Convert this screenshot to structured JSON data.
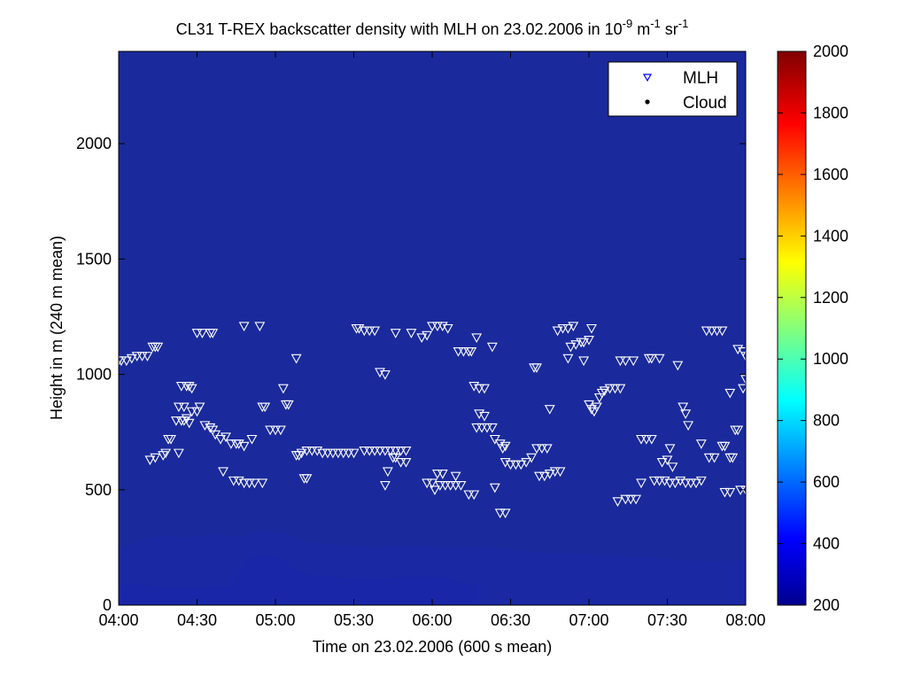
{
  "chart_data": {
    "type": "scatter",
    "title": "CL31 T-REX backscatter density with MLH on 23.02.2006 in 10",
    "title_units": {
      "exp1": "-9",
      "unit1": " m",
      "exp2": "-1",
      "unit2": " sr",
      "exp3": "-1"
    },
    "xlabel": "Time on 23.02.2006 (600 s mean)",
    "ylabel": "Height in m (240 m mean)",
    "xlim": [
      "04:00",
      "08:00"
    ],
    "ylim": [
      0,
      2400
    ],
    "x_ticks": [
      "04:00",
      "04:30",
      "05:00",
      "05:30",
      "06:00",
      "06:30",
      "07:00",
      "07:30",
      "08:00"
    ],
    "y_ticks": [
      "0",
      "500",
      "1000",
      "1500",
      "2000"
    ],
    "grid": false,
    "legend_position": "top-right",
    "colors": {
      "background": "#1a2a9c",
      "ground_layer": "#1826a0",
      "marker": "#ffffff",
      "legend_mlh": "#0000ff"
    },
    "colorbar": {
      "min": 200,
      "max": 2000,
      "ticks": [
        "200",
        "400",
        "600",
        "800",
        "1000",
        "1200",
        "1400",
        "1600",
        "1800",
        "2000"
      ],
      "colormap": "jet"
    },
    "series": [
      {
        "name": "MLH",
        "marker": "triangle-down",
        "points": [
          [
            "04:00",
            1060
          ],
          [
            "04:01",
            1060
          ],
          [
            "04:03",
            1060
          ],
          [
            "04:05",
            1070
          ],
          [
            "04:07",
            1080
          ],
          [
            "04:09",
            1080
          ],
          [
            "04:11",
            1080
          ],
          [
            "04:13",
            1120
          ],
          [
            "04:14",
            1120
          ],
          [
            "04:15",
            1120
          ],
          [
            "04:12",
            630
          ],
          [
            "04:14",
            640
          ],
          [
            "04:17",
            650
          ],
          [
            "04:18",
            660
          ],
          [
            "04:19",
            720
          ],
          [
            "04:20",
            720
          ],
          [
            "04:22",
            800
          ],
          [
            "04:24",
            800
          ],
          [
            "04:25",
            800
          ],
          [
            "04:26",
            810
          ],
          [
            "04:27",
            790
          ],
          [
            "04:23",
            860
          ],
          [
            "04:25",
            860
          ],
          [
            "04:24",
            950
          ],
          [
            "04:26",
            950
          ],
          [
            "04:27",
            950
          ],
          [
            "04:28",
            940
          ],
          [
            "04:23",
            660
          ],
          [
            "04:28",
            840
          ],
          [
            "04:30",
            840
          ],
          [
            "04:31",
            860
          ],
          [
            "04:33",
            780
          ],
          [
            "04:35",
            770
          ],
          [
            "04:36",
            760
          ],
          [
            "04:37",
            740
          ],
          [
            "04:39",
            720
          ],
          [
            "04:41",
            730
          ],
          [
            "04:43",
            700
          ],
          [
            "04:45",
            700
          ],
          [
            "04:46",
            700
          ],
          [
            "04:48",
            690
          ],
          [
            "04:51",
            720
          ],
          [
            "04:30",
            1180
          ],
          [
            "04:32",
            1180
          ],
          [
            "04:35",
            1180
          ],
          [
            "04:36",
            1180
          ],
          [
            "04:40",
            580
          ],
          [
            "04:44",
            540
          ],
          [
            "04:46",
            540
          ],
          [
            "04:48",
            530
          ],
          [
            "04:50",
            530
          ],
          [
            "04:52",
            530
          ],
          [
            "04:48",
            1210
          ],
          [
            "04:54",
            1210
          ],
          [
            "04:55",
            860
          ],
          [
            "04:56",
            860
          ],
          [
            "04:58",
            760
          ],
          [
            "05:00",
            760
          ],
          [
            "05:02",
            760
          ],
          [
            "05:03",
            940
          ],
          [
            "05:04",
            870
          ],
          [
            "05:05",
            870
          ],
          [
            "04:55",
            530
          ],
          [
            "05:08",
            1070
          ],
          [
            "05:08",
            650
          ],
          [
            "05:09",
            650
          ],
          [
            "05:10",
            660
          ],
          [
            "05:12",
            670
          ],
          [
            "05:14",
            670
          ],
          [
            "05:16",
            670
          ],
          [
            "05:18",
            660
          ],
          [
            "05:20",
            660
          ],
          [
            "05:22",
            660
          ],
          [
            "05:24",
            660
          ],
          [
            "05:26",
            660
          ],
          [
            "05:28",
            660
          ],
          [
            "05:30",
            660
          ],
          [
            "05:11",
            550
          ],
          [
            "05:12",
            550
          ],
          [
            "05:31",
            1200
          ],
          [
            "05:32",
            1200
          ],
          [
            "05:34",
            1190
          ],
          [
            "05:36",
            1190
          ],
          [
            "05:38",
            1190
          ],
          [
            "05:34",
            670
          ],
          [
            "05:36",
            670
          ],
          [
            "05:38",
            670
          ],
          [
            "05:40",
            670
          ],
          [
            "05:42",
            670
          ],
          [
            "05:44",
            670
          ],
          [
            "05:46",
            670
          ],
          [
            "05:48",
            670
          ],
          [
            "05:50",
            670
          ],
          [
            "05:40",
            1010
          ],
          [
            "05:42",
            1000
          ],
          [
            "05:42",
            520
          ],
          [
            "05:43",
            580
          ],
          [
            "05:45",
            640
          ],
          [
            "05:46",
            640
          ],
          [
            "05:48",
            620
          ],
          [
            "05:50",
            620
          ],
          [
            "05:46",
            1180
          ],
          [
            "05:52",
            1180
          ],
          [
            "05:56",
            1160
          ],
          [
            "05:58",
            1170
          ],
          [
            "05:58",
            530
          ],
          [
            "06:00",
            530
          ],
          [
            "06:01",
            500
          ],
          [
            "06:03",
            520
          ],
          [
            "06:05",
            520
          ],
          [
            "06:07",
            520
          ],
          [
            "06:09",
            520
          ],
          [
            "06:11",
            520
          ],
          [
            "06:00",
            1210
          ],
          [
            "06:02",
            1210
          ],
          [
            "06:04",
            1210
          ],
          [
            "06:06",
            1200
          ],
          [
            "06:02",
            570
          ],
          [
            "06:04",
            570
          ],
          [
            "06:09",
            560
          ],
          [
            "06:10",
            1100
          ],
          [
            "06:12",
            1100
          ],
          [
            "06:14",
            1100
          ],
          [
            "06:15",
            1100
          ],
          [
            "06:17",
            1160
          ],
          [
            "06:14",
            480
          ],
          [
            "06:16",
            480
          ],
          [
            "06:16",
            950
          ],
          [
            "06:18",
            940
          ],
          [
            "06:20",
            940
          ],
          [
            "06:18",
            830
          ],
          [
            "06:20",
            820
          ],
          [
            "06:17",
            770
          ],
          [
            "06:19",
            770
          ],
          [
            "06:21",
            770
          ],
          [
            "06:23",
            770
          ],
          [
            "06:23",
            1120
          ],
          [
            "06:24",
            510
          ],
          [
            "06:24",
            720
          ],
          [
            "06:26",
            700
          ],
          [
            "06:27",
            680
          ],
          [
            "06:28",
            690
          ],
          [
            "06:26",
            400
          ],
          [
            "06:28",
            400
          ],
          [
            "06:28",
            620
          ],
          [
            "06:30",
            610
          ],
          [
            "06:32",
            610
          ],
          [
            "06:34",
            610
          ],
          [
            "06:36",
            620
          ],
          [
            "06:38",
            640
          ],
          [
            "06:39",
            1030
          ],
          [
            "06:40",
            1030
          ],
          [
            "06:40",
            680
          ],
          [
            "06:42",
            680
          ],
          [
            "06:44",
            680
          ],
          [
            "06:41",
            560
          ],
          [
            "06:43",
            560
          ],
          [
            "06:45",
            570
          ],
          [
            "06:47",
            580
          ],
          [
            "06:49",
            580
          ],
          [
            "06:45",
            850
          ],
          [
            "06:48",
            1190
          ],
          [
            "06:50",
            1200
          ],
          [
            "06:52",
            1200
          ],
          [
            "06:54",
            1210
          ],
          [
            "06:52",
            1070
          ],
          [
            "06:53",
            1120
          ],
          [
            "06:55",
            1130
          ],
          [
            "06:57",
            1140
          ],
          [
            "06:58",
            1140
          ],
          [
            "07:00",
            1150
          ],
          [
            "06:58",
            1060
          ],
          [
            "07:01",
            1200
          ],
          [
            "07:00",
            870
          ],
          [
            "07:01",
            850
          ],
          [
            "07:02",
            840
          ],
          [
            "07:03",
            860
          ],
          [
            "07:04",
            900
          ],
          [
            "07:05",
            920
          ],
          [
            "07:06",
            930
          ],
          [
            "07:08",
            940
          ],
          [
            "07:10",
            940
          ],
          [
            "07:12",
            940
          ],
          [
            "07:12",
            1060
          ],
          [
            "07:14",
            1060
          ],
          [
            "07:17",
            1060
          ],
          [
            "07:11",
            450
          ],
          [
            "07:14",
            460
          ],
          [
            "07:16",
            460
          ],
          [
            "07:18",
            460
          ],
          [
            "07:20",
            720
          ],
          [
            "07:22",
            720
          ],
          [
            "07:24",
            720
          ],
          [
            "07:20",
            530
          ],
          [
            "07:23",
            1070
          ],
          [
            "07:24",
            1070
          ],
          [
            "07:27",
            1070
          ],
          [
            "07:25",
            540
          ],
          [
            "07:27",
            540
          ],
          [
            "07:29",
            540
          ],
          [
            "07:31",
            530
          ],
          [
            "07:33",
            530
          ],
          [
            "07:35",
            540
          ],
          [
            "07:37",
            530
          ],
          [
            "07:39",
            530
          ],
          [
            "07:41",
            530
          ],
          [
            "07:43",
            540
          ],
          [
            "07:28",
            620
          ],
          [
            "07:30",
            630
          ],
          [
            "07:32",
            600
          ],
          [
            "07:31",
            680
          ],
          [
            "07:34",
            1040
          ],
          [
            "07:36",
            860
          ],
          [
            "07:37",
            830
          ],
          [
            "07:38",
            780
          ],
          [
            "07:43",
            700
          ],
          [
            "07:45",
            1190
          ],
          [
            "07:47",
            1190
          ],
          [
            "07:49",
            1190
          ],
          [
            "07:51",
            1190
          ],
          [
            "07:46",
            640
          ],
          [
            "07:48",
            640
          ],
          [
            "07:51",
            690
          ],
          [
            "07:52",
            690
          ],
          [
            "07:54",
            640
          ],
          [
            "07:55",
            640
          ],
          [
            "07:52",
            490
          ],
          [
            "07:54",
            490
          ],
          [
            "07:54",
            920
          ],
          [
            "07:56",
            760
          ],
          [
            "07:57",
            760
          ],
          [
            "07:57",
            1110
          ],
          [
            "07:59",
            1100
          ],
          [
            "07:58",
            500
          ],
          [
            "08:00",
            500
          ],
          [
            "07:59",
            940
          ],
          [
            "08:00",
            1080
          ],
          [
            "08:00",
            980
          ]
        ]
      },
      {
        "name": "Cloud",
        "marker": "dot",
        "points": []
      }
    ]
  }
}
